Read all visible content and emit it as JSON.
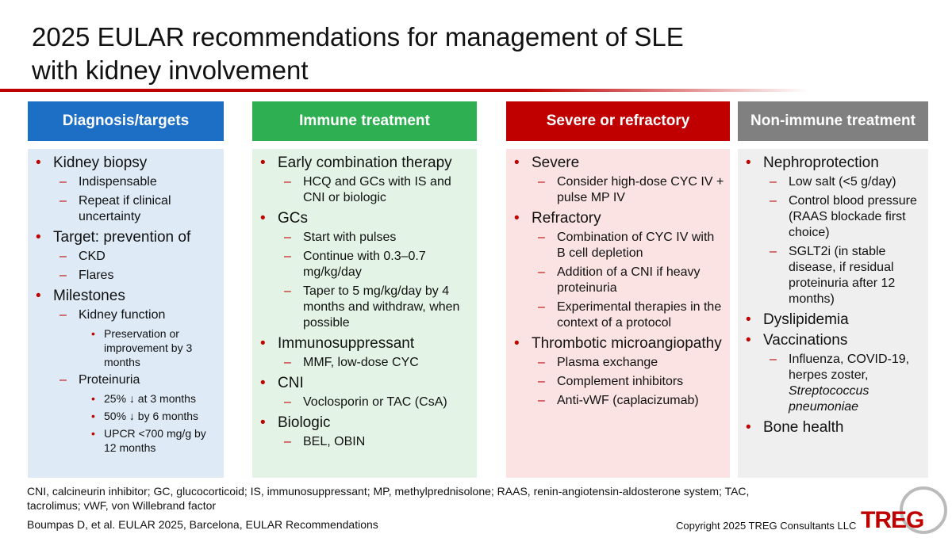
{
  "title": "2025 EULAR recommendations for management of SLE with kidney involvement",
  "columns": [
    {
      "header": "Diagnosis/targets",
      "items": [
        {
          "text": "Kidney biopsy",
          "children": [
            {
              "text": "Indispensable"
            },
            {
              "text": "Repeat if clinical uncertainty"
            }
          ]
        },
        {
          "text": "Target: prevention of",
          "children": [
            {
              "text": "CKD"
            },
            {
              "text": "Flares"
            }
          ]
        },
        {
          "text": "Milestones",
          "children": [
            {
              "text": "Kidney function",
              "children": [
                {
                  "text": "Preservation or improvement by 3 months"
                }
              ]
            },
            {
              "text": "Proteinuria",
              "children": [
                {
                  "text": "25% ↓ at 3 months"
                },
                {
                  "text": "50% ↓ by 6 months"
                },
                {
                  "text": "UPCR <700 mg/g by 12 months"
                }
              ]
            }
          ]
        }
      ]
    },
    {
      "header": "Immune treatment",
      "items": [
        {
          "text": "Early combination therapy",
          "children": [
            {
              "text": "HCQ and GCs with IS and CNI or biologic"
            }
          ]
        },
        {
          "text": "GCs",
          "children": [
            {
              "text": "Start with pulses"
            },
            {
              "text": "Continue with 0.3–0.7 mg/kg/day"
            },
            {
              "text": "Taper to 5 mg/kg/day by 4 months and withdraw, when possible"
            }
          ]
        },
        {
          "text": "Immunosuppressant",
          "children": [
            {
              "text": "MMF, low-dose CYC"
            }
          ]
        },
        {
          "text": "CNI",
          "children": [
            {
              "text": "Voclosporin or TAC (CsA)"
            }
          ]
        },
        {
          "text": "Biologic",
          "children": [
            {
              "text": "BEL, OBIN"
            }
          ]
        }
      ]
    },
    {
      "header": "Severe or refractory",
      "items": [
        {
          "text": "Severe",
          "children": [
            {
              "text": "Consider high-dose CYC IV + pulse MP IV"
            }
          ]
        },
        {
          "text": "Refractory",
          "children": [
            {
              "text": "Combination of CYC IV with B cell depletion"
            },
            {
              "text": "Addition of a CNI if heavy proteinuria"
            },
            {
              "text": "Experimental therapies in the context of a protocol"
            }
          ]
        },
        {
          "text": "Thrombotic microangiopathy",
          "children": [
            {
              "text": "Plasma exchange"
            },
            {
              "text": "Complement inhibitors"
            },
            {
              "text": "Anti-vWF (caplacizumab)"
            }
          ]
        }
      ]
    },
    {
      "header": "Non-immune treatment",
      "items": [
        {
          "text": "Nephroprotection",
          "children": [
            {
              "text": "Low salt (<5 g/day)"
            },
            {
              "text": "Control blood pressure (RAAS blockade first choice)"
            },
            {
              "text": "SGLT2i (in stable disease, if residual proteinuria after 12 months)"
            }
          ]
        },
        {
          "text": "Dyslipidemia"
        },
        {
          "text": "Vaccinations",
          "children": [
            {
              "text": "Influenza, COVID-19, herpes zoster,",
              "italic": "Streptococcus pneumoniae"
            }
          ]
        },
        {
          "text": "Bone health"
        }
      ]
    }
  ],
  "footnote": "CNI, calcineurin inhibitor; GC, glucocorticoid; IS, immunosuppressant; MP, methylprednisolone; RAAS, renin-angiotensin-aldosterone system; TAC, tacrolimus; vWF, von Willebrand factor",
  "citation": "Boumpas D, et al. EULAR 2025, Barcelona, EULAR Recommendations",
  "copyright": "Copyright 2025 TREG Consultants LLC",
  "logo": "TREG"
}
